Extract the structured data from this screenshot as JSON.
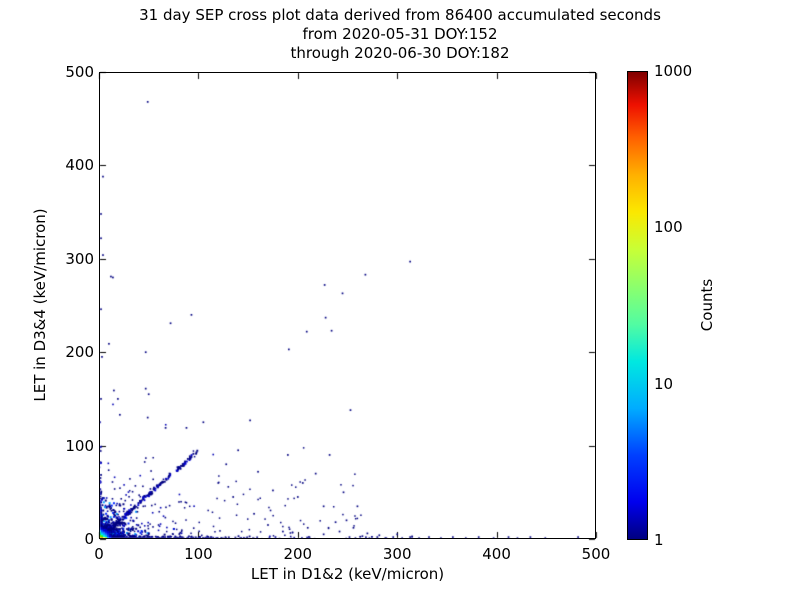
{
  "title": {
    "line1": "31 day SEP cross plot data derived from 86400 accumulated seconds",
    "line2": "from 2020-05-31 DOY:152",
    "line3": "through 2020-06-30 DOY:182"
  },
  "chart_data": {
    "type": "scatter",
    "subtype": "2d-histogram-density",
    "title": "31 day SEP cross plot data derived from 86400 accumulated seconds from 2020-05-31 DOY:152 through 2020-06-30 DOY:182",
    "xlabel": "LET in D1&2 (keV/micron)",
    "ylabel": "LET in D3&4 (keV/micron)",
    "xlim": [
      0,
      500
    ],
    "ylim": [
      0,
      500
    ],
    "xticks": [
      0,
      100,
      200,
      300,
      400,
      500
    ],
    "yticks": [
      0,
      100,
      200,
      300,
      400,
      500
    ],
    "grid": false,
    "point_color": "#000080",
    "colorbar": {
      "label": "Counts",
      "scale": "log",
      "min": 1,
      "max": 1000,
      "ticks": [
        {
          "value": "1000",
          "pos": 1.0
        },
        {
          "value": "100",
          "pos": 0.6667
        },
        {
          "value": "10",
          "pos": 0.3333
        },
        {
          "value": "1",
          "pos": 0.0
        }
      ],
      "colormap": "jet",
      "gradient_stops": [
        {
          "color": "#000080",
          "pos": 0
        },
        {
          "color": "#0000ee",
          "pos": 8
        },
        {
          "color": "#0040ff",
          "pos": 18
        },
        {
          "color": "#00acff",
          "pos": 28
        },
        {
          "color": "#00e8e0",
          "pos": 38
        },
        {
          "color": "#52fca2",
          "pos": 46
        },
        {
          "color": "#7dff7a",
          "pos": 52
        },
        {
          "color": "#c8ff36",
          "pos": 62
        },
        {
          "color": "#fbe800",
          "pos": 70
        },
        {
          "color": "#ffb000",
          "pos": 78
        },
        {
          "color": "#ff6000",
          "pos": 86
        },
        {
          "color": "#ee1000",
          "pos": 93
        },
        {
          "color": "#800000",
          "pos": 100
        }
      ]
    },
    "features": {
      "description": "Dense hot-colored (up to ~100s of counts) cluster at origin; dark-blue diagonal coincidence streak of slope ~0.95 out to (100,95); dense band along x-axis out to x~310 with sparse tail to x~480; thin strip along y-axis up to y~125; sparse isolated single-count points scattered below y~300 and a few outliers up to (49,468)."
    },
    "points": [
      [
        49,
        468
      ],
      [
        4,
        388
      ],
      [
        2,
        348
      ],
      [
        2,
        322
      ],
      [
        4,
        304
      ],
      [
        313,
        297
      ],
      [
        268,
        283
      ],
      [
        227,
        272
      ],
      [
        245,
        263
      ],
      [
        12,
        281
      ],
      [
        14,
        280
      ],
      [
        2,
        246
      ],
      [
        93,
        240
      ],
      [
        228,
        237
      ],
      [
        72,
        231
      ],
      [
        234,
        223
      ],
      [
        209,
        222
      ],
      [
        10,
        209
      ],
      [
        191,
        203
      ],
      [
        47,
        200
      ],
      [
        3,
        195
      ],
      [
        2,
        150
      ],
      [
        15,
        159
      ],
      [
        47,
        161
      ],
      [
        50,
        155
      ],
      [
        19,
        150
      ],
      [
        253,
        138
      ],
      [
        21,
        133
      ],
      [
        49,
        130
      ],
      [
        152,
        127
      ],
      [
        105,
        125
      ],
      [
        67,
        119
      ],
      [
        88,
        119
      ],
      [
        140,
        95
      ],
      [
        128,
        80
      ],
      [
        190,
        90
      ],
      [
        205,
        60
      ],
      [
        232,
        90
      ],
      [
        218,
        70
      ],
      [
        160,
        72
      ],
      [
        175,
        52
      ],
      [
        120,
        60
      ],
      [
        135,
        45
      ],
      [
        200,
        45
      ],
      [
        226,
        35
      ],
      [
        246,
        50
      ],
      [
        260,
        35
      ],
      [
        156,
        27
      ],
      [
        249,
        20
      ],
      [
        170,
        15
      ],
      [
        185,
        8
      ],
      [
        210,
        12
      ],
      [
        238,
        18
      ],
      [
        256,
        12
      ],
      [
        226,
        5
      ],
      [
        242,
        8
      ],
      [
        270,
        6
      ],
      [
        282,
        4
      ],
      [
        300,
        5
      ],
      [
        252,
        2
      ],
      [
        258,
        1
      ],
      [
        265,
        3
      ],
      [
        272,
        1
      ],
      [
        280,
        2
      ],
      [
        288,
        1
      ],
      [
        296,
        2
      ],
      [
        305,
        1
      ],
      [
        313,
        2
      ],
      [
        322,
        1
      ],
      [
        332,
        2
      ],
      [
        344,
        1
      ],
      [
        356,
        2
      ],
      [
        369,
        1
      ],
      [
        382,
        2
      ],
      [
        397,
        1
      ],
      [
        412,
        2
      ],
      [
        421,
        1
      ],
      [
        434,
        2
      ],
      [
        449,
        1
      ],
      [
        482,
        2
      ]
    ],
    "origin_cells": [
      [
        0,
        0,
        "#ffdf00"
      ],
      [
        2,
        0,
        "#ff7800"
      ],
      [
        4,
        0,
        "#ffff30"
      ],
      [
        0,
        2,
        "#a0ff00"
      ],
      [
        2,
        2,
        "#2fff10"
      ],
      [
        0,
        4,
        "#00ff90"
      ],
      [
        4,
        2,
        "#00ffea"
      ],
      [
        2,
        4,
        "#00e4ff"
      ],
      [
        6,
        0,
        "#b4ff00"
      ],
      [
        0,
        6,
        "#00ffd0"
      ],
      [
        4,
        4,
        "#00b4ff"
      ],
      [
        6,
        2,
        "#00c8ff"
      ],
      [
        2,
        6,
        "#0096ff"
      ],
      [
        8,
        0,
        "#00a0ff"
      ],
      [
        0,
        8,
        "#00b4ff"
      ],
      [
        6,
        4,
        "#1e6eff"
      ],
      [
        4,
        6,
        "#1e6eff"
      ],
      [
        8,
        2,
        "#0050ff"
      ],
      [
        2,
        8,
        "#0046ff"
      ],
      [
        6,
        6,
        "#0a28e6"
      ],
      [
        8,
        4,
        "#0a28e6"
      ],
      [
        4,
        8,
        "#0000dc"
      ],
      [
        10,
        0,
        "#0032ff"
      ],
      [
        0,
        10,
        "#0028f0"
      ],
      [
        8,
        6,
        "#0000d2"
      ],
      [
        6,
        8,
        "#0000c8"
      ],
      [
        10,
        2,
        "#0000c8"
      ],
      [
        2,
        10,
        "#0000be"
      ]
    ],
    "clusters": [
      {
        "kind": "exp2d",
        "count": 750,
        "xscale": 9,
        "yscale": 7.5,
        "xmax": 90,
        "ymax": 80,
        "size": 2,
        "palette": [
          "#000080",
          "#000080",
          "#000080",
          "#000085",
          "#0000c8",
          "#0028ff",
          "#00a0ff"
        ]
      },
      {
        "kind": "exp2d",
        "count": 260,
        "xscale": 34,
        "yscale": 21,
        "xmax": 240,
        "ymax": 150,
        "size": 1.6,
        "palette": [
          "#000080",
          "#000080",
          "#0000b4"
        ]
      },
      {
        "kind": "streak",
        "count": 230,
        "slope": 0.95,
        "length": 100,
        "jitter": 2.2,
        "power": 1.7,
        "size": 1.9,
        "palette": [
          "#000080",
          "#000080",
          "#0000cd"
        ]
      },
      {
        "kind": "band",
        "count": 420,
        "xscale": 55,
        "xmax": 315,
        "ymax": 3.5,
        "size": 1.8,
        "palette": [
          "#000080",
          "#000080",
          "#000092"
        ]
      },
      {
        "kind": "strip",
        "count": 140,
        "yscale": 28,
        "ymax": 125,
        "xmax": 2.5,
        "size": 1.8,
        "palette": [
          "#000080",
          "#0000c0"
        ]
      },
      {
        "kind": "uniform",
        "count": 90,
        "xmax": 265,
        "ymax": 115,
        "size": 1.5,
        "palette": [
          "#000080"
        ]
      }
    ],
    "seed": 42
  }
}
